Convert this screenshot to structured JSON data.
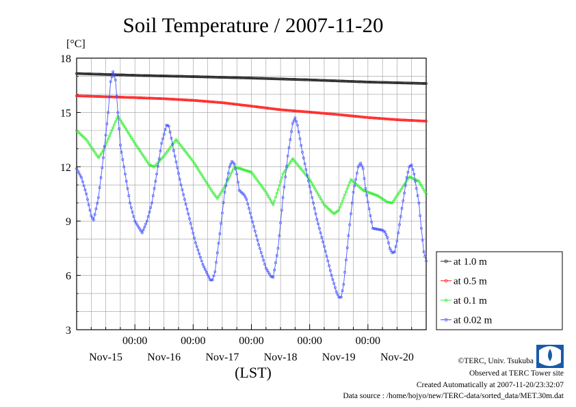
{
  "chart_data": {
    "type": "line",
    "title": "Soil Temperature / 2007-11-20",
    "ylabel": "[°C]",
    "xlabel": "(LST)",
    "ylim": [
      3,
      18
    ],
    "xlim": [
      0,
      144
    ],
    "yticks": [
      3,
      6,
      9,
      12,
      15,
      18
    ],
    "xticks": [
      {
        "x": 24,
        "time": "00:00",
        "date": "Nov-15"
      },
      {
        "x": 48,
        "time": "00:00",
        "date": "Nov-16"
      },
      {
        "x": 72,
        "time": "00:00",
        "date": "Nov-17"
      },
      {
        "x": 96,
        "time": "00:00",
        "date": "Nov-18"
      },
      {
        "x": 120,
        "time": "00:00",
        "date": "Nov-19"
      },
      {
        "x": 144,
        "time": "",
        "date": "Nov-20"
      }
    ],
    "x_unit_note": "hours since 2007-11-14 00:00 LST",
    "grid": true,
    "legend": "bottom-right",
    "series": [
      {
        "name": "at 1.0 m",
        "color": "#222222",
        "points": [
          [
            0,
            17.15
          ],
          [
            24,
            17.05
          ],
          [
            48,
            16.98
          ],
          [
            72,
            16.9
          ],
          [
            96,
            16.8
          ],
          [
            120,
            16.68
          ],
          [
            144,
            16.6
          ]
        ]
      },
      {
        "name": "at 0.5 m",
        "color": "#ff2020",
        "points": [
          [
            0,
            15.92
          ],
          [
            12,
            15.87
          ],
          [
            24,
            15.82
          ],
          [
            36,
            15.76
          ],
          [
            48,
            15.67
          ],
          [
            60,
            15.54
          ],
          [
            72,
            15.35
          ],
          [
            84,
            15.15
          ],
          [
            96,
            15.02
          ],
          [
            108,
            14.88
          ],
          [
            120,
            14.72
          ],
          [
            132,
            14.6
          ],
          [
            144,
            14.52
          ]
        ]
      },
      {
        "name": "at 0.1 m",
        "color": "#33ee33",
        "points": [
          [
            0,
            14.0
          ],
          [
            4,
            13.5
          ],
          [
            9,
            12.5
          ],
          [
            11,
            12.9
          ],
          [
            17,
            14.8
          ],
          [
            24,
            13.3
          ],
          [
            30,
            12.1
          ],
          [
            32,
            12.0
          ],
          [
            36,
            12.6
          ],
          [
            41,
            13.5
          ],
          [
            48,
            12.3
          ],
          [
            56,
            10.6
          ],
          [
            58,
            10.25
          ],
          [
            61,
            10.9
          ],
          [
            65,
            12.0
          ],
          [
            72,
            11.7
          ],
          [
            78,
            10.6
          ],
          [
            81,
            9.9
          ],
          [
            85,
            11.6
          ],
          [
            89,
            12.45
          ],
          [
            96,
            11.3
          ],
          [
            102,
            9.9
          ],
          [
            106,
            9.4
          ],
          [
            108,
            9.6
          ],
          [
            113,
            11.3
          ],
          [
            118,
            10.7
          ],
          [
            124,
            10.4
          ],
          [
            128,
            10.05
          ],
          [
            130,
            10.0
          ],
          [
            133,
            10.6
          ],
          [
            137,
            11.45
          ],
          [
            141,
            11.2
          ],
          [
            144,
            10.5
          ]
        ]
      },
      {
        "name": "at 0.02 m",
        "color": "#4455ff",
        "points": [
          [
            0,
            11.9
          ],
          [
            2,
            11.4
          ],
          [
            4,
            10.5
          ],
          [
            6,
            9.3
          ],
          [
            7,
            9.05
          ],
          [
            9,
            10.3
          ],
          [
            11,
            12.5
          ],
          [
            13,
            15.0
          ],
          [
            14,
            16.7
          ],
          [
            15,
            17.25
          ],
          [
            16,
            16.8
          ],
          [
            17,
            15.0
          ],
          [
            18,
            13.2
          ],
          [
            20,
            11.6
          ],
          [
            22,
            10.0
          ],
          [
            24,
            9.0
          ],
          [
            27,
            8.35
          ],
          [
            29,
            9.0
          ],
          [
            31,
            10.0
          ],
          [
            33,
            11.6
          ],
          [
            35,
            13.3
          ],
          [
            37,
            14.3
          ],
          [
            38,
            14.25
          ],
          [
            40,
            12.9
          ],
          [
            43,
            11.0
          ],
          [
            46,
            9.4
          ],
          [
            49,
            7.8
          ],
          [
            52,
            6.6
          ],
          [
            55,
            5.75
          ],
          [
            56,
            5.75
          ],
          [
            57,
            6.2
          ],
          [
            59,
            8.3
          ],
          [
            61,
            10.6
          ],
          [
            63,
            12.0
          ],
          [
            64,
            12.3
          ],
          [
            65,
            12.15
          ],
          [
            66,
            11.6
          ],
          [
            67,
            10.7
          ],
          [
            69,
            10.45
          ],
          [
            70,
            10.2
          ],
          [
            72,
            9.2
          ],
          [
            75,
            7.7
          ],
          [
            78,
            6.4
          ],
          [
            80,
            5.95
          ],
          [
            81,
            5.9
          ],
          [
            83,
            7.5
          ],
          [
            85,
            10.3
          ],
          [
            87,
            12.6
          ],
          [
            89,
            14.4
          ],
          [
            90,
            14.7
          ],
          [
            91,
            14.3
          ],
          [
            93,
            12.8
          ],
          [
            96,
            10.9
          ],
          [
            99,
            9.1
          ],
          [
            102,
            7.6
          ],
          [
            105,
            6.0
          ],
          [
            107,
            5.1
          ],
          [
            108,
            4.8
          ],
          [
            109,
            4.8
          ],
          [
            110,
            5.5
          ],
          [
            112,
            8.2
          ],
          [
            114,
            10.6
          ],
          [
            116,
            12.0
          ],
          [
            117,
            12.2
          ],
          [
            118,
            11.9
          ],
          [
            119,
            10.8
          ],
          [
            121,
            9.3
          ],
          [
            122,
            8.6
          ],
          [
            124,
            8.55
          ],
          [
            126,
            8.5
          ],
          [
            127,
            8.4
          ],
          [
            128,
            8.1
          ],
          [
            129,
            7.5
          ],
          [
            130,
            7.25
          ],
          [
            131,
            7.3
          ],
          [
            132,
            7.9
          ],
          [
            134,
            9.7
          ],
          [
            136,
            11.4
          ],
          [
            137,
            12.0
          ],
          [
            138,
            12.1
          ],
          [
            139,
            11.6
          ],
          [
            141,
            10.0
          ],
          [
            142,
            8.6
          ],
          [
            143,
            7.3
          ],
          [
            144,
            6.8
          ]
        ]
      }
    ]
  },
  "footer": {
    "copyright": "©TERC, Univ. Tsukuba",
    "observed": "Observed at TERC Tower site",
    "created": "Created Automatically at 2007-11-20/23:32:07",
    "source": "Data source : /home/hojyo/new/TERC-data/sorted_data/MET.30m.dat"
  }
}
